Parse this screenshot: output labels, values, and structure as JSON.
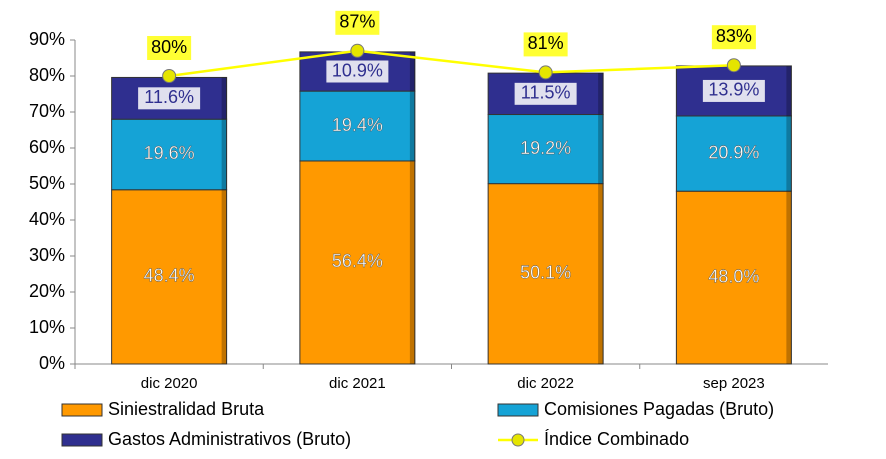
{
  "chart_data": {
    "type": "bar",
    "stacked": true,
    "categories": [
      "dic 2020",
      "dic 2021",
      "dic 2022",
      "sep 2023"
    ],
    "series": [
      {
        "name": "Siniestralidad Bruta",
        "color": "#ff9900",
        "values": [
          48.4,
          56.4,
          50.1,
          48.0
        ],
        "value_labels": [
          "48.4%",
          "56.4%",
          "50.1%",
          "48.0%"
        ]
      },
      {
        "name": "Comisiones Pagadas (Bruto)",
        "color": "#15a3d6",
        "values": [
          19.6,
          19.4,
          19.2,
          20.9
        ],
        "value_labels": [
          "19.6%",
          "19.4%",
          "19.2%",
          "20.9%"
        ]
      },
      {
        "name": "Gastos Administrativos (Bruto)",
        "color": "#2f2f8f",
        "values": [
          11.6,
          10.9,
          11.5,
          13.9
        ],
        "value_labels": [
          "11.6%",
          "10.9%",
          "11.5%",
          "13.9%"
        ]
      },
      {
        "name": "Índice Combinado",
        "type": "line",
        "color": "#ffff00",
        "values": [
          80,
          87,
          81,
          83
        ],
        "value_labels": [
          "80%",
          "87%",
          "81%",
          "83%"
        ]
      }
    ],
    "ylim": [
      0,
      90
    ],
    "yticks": [
      {
        "value": 0,
        "label": "0%"
      },
      {
        "value": 10,
        "label": "10%"
      },
      {
        "value": 20,
        "label": "20%"
      },
      {
        "value": 30,
        "label": "30%"
      },
      {
        "value": 40,
        "label": "40%"
      },
      {
        "value": 50,
        "label": "50%"
      },
      {
        "value": 60,
        "label": "60%"
      },
      {
        "value": 70,
        "label": "70%"
      },
      {
        "value": 80,
        "label": "80%"
      },
      {
        "value": 90,
        "label": "90%"
      }
    ],
    "legend": "bottom"
  }
}
